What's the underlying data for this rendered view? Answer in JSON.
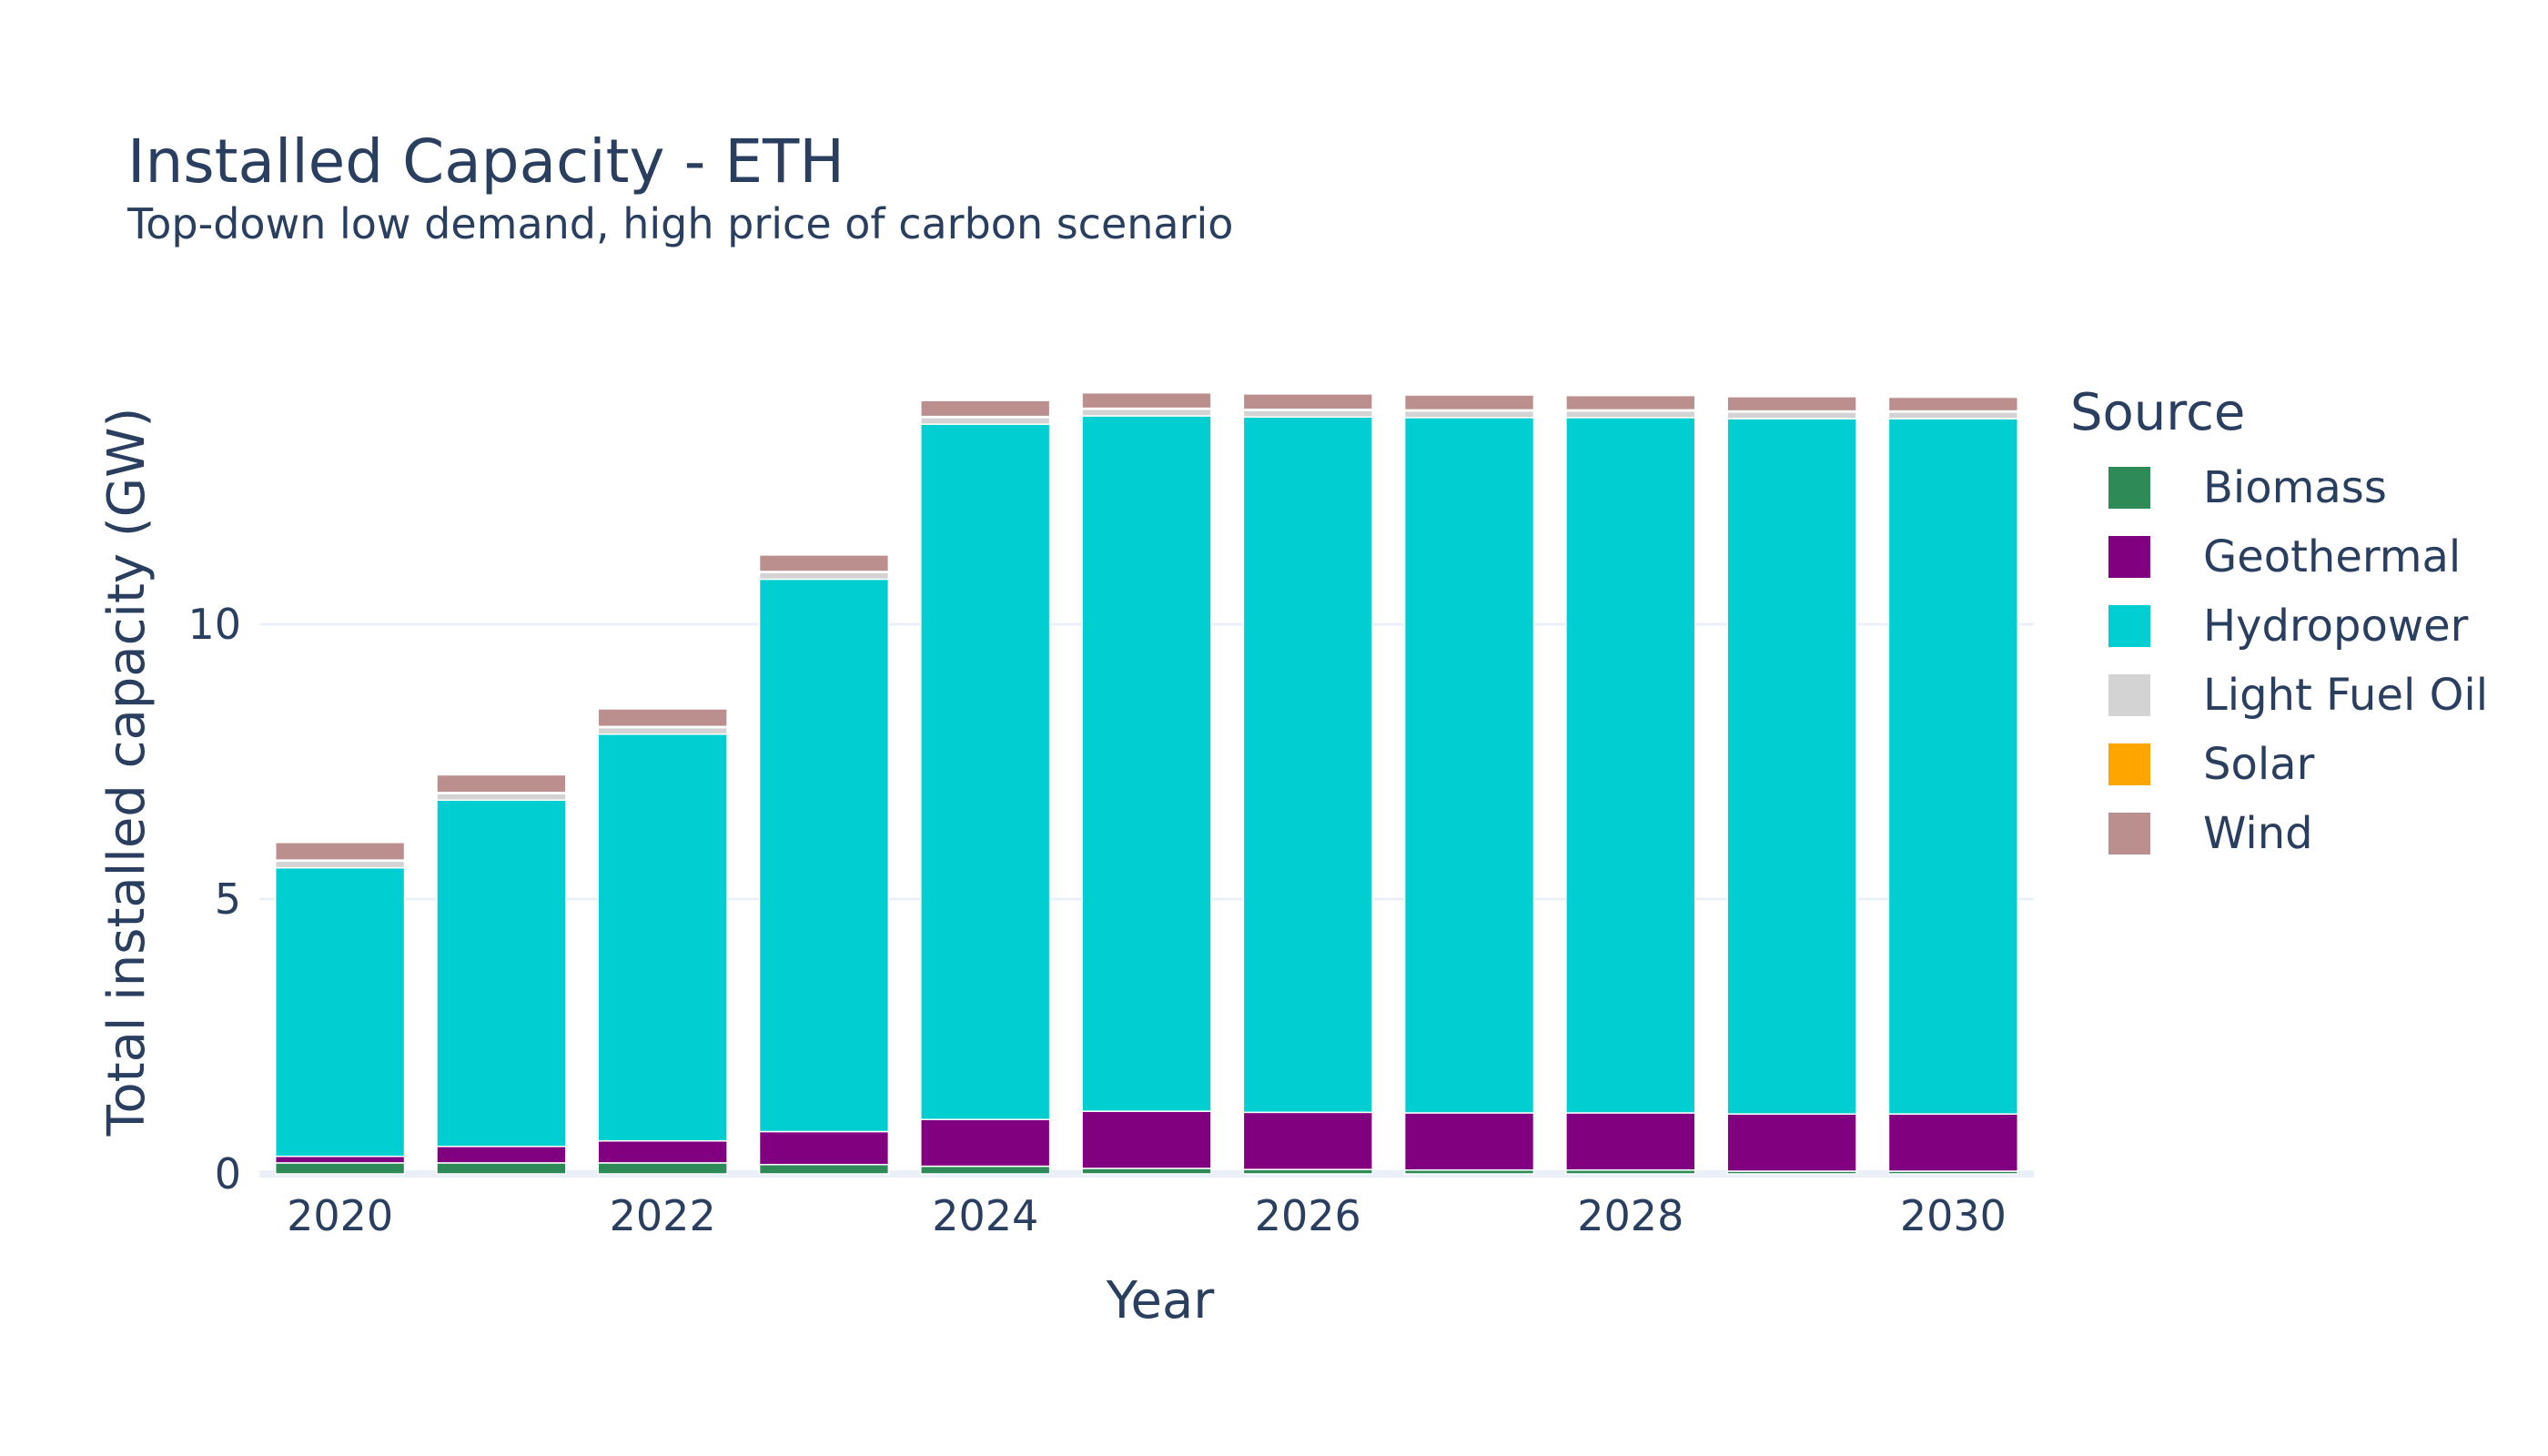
{
  "chart_data": {
    "type": "bar",
    "barmode": "stack",
    "title": "Installed Capacity - ETH",
    "subtitle": "Top-down low demand, high price of carbon scenario",
    "xlabel": "Year",
    "ylabel": "Total installed capacity (GW)",
    "legend_title": "Source",
    "legend_position": "right",
    "grid": true,
    "categories": [
      2020,
      2021,
      2022,
      2023,
      2024,
      2025,
      2026,
      2027,
      2028,
      2029,
      2030
    ],
    "x_ticks": [
      "2020",
      "2022",
      "2024",
      "2026",
      "2028",
      "2030"
    ],
    "y_ticks": [
      0,
      5,
      10
    ],
    "y_tick_labels": [
      "0",
      "5",
      "10"
    ],
    "ylim": [
      0,
      14.9
    ],
    "series": [
      {
        "name": "Biomass",
        "color": "#2e8b57",
        "values": [
          0.2,
          0.2,
          0.2,
          0.17,
          0.14,
          0.1,
          0.08,
          0.07,
          0.07,
          0.05,
          0.05
        ]
      },
      {
        "name": "Geothermal",
        "color": "#800080",
        "values": [
          0.12,
          0.3,
          0.4,
          0.6,
          0.85,
          1.04,
          1.04,
          1.04,
          1.04,
          1.04,
          1.04
        ]
      },
      {
        "name": "Hydropower",
        "color": "#00ced1",
        "values": [
          5.25,
          6.3,
          7.4,
          10.05,
          12.65,
          12.65,
          12.65,
          12.65,
          12.65,
          12.65,
          12.65
        ]
      },
      {
        "name": "Light Fuel Oil",
        "color": "#d3d3d3",
        "values": [
          0.12,
          0.12,
          0.12,
          0.12,
          0.12,
          0.12,
          0.12,
          0.12,
          0.12,
          0.12,
          0.12
        ]
      },
      {
        "name": "Solar",
        "color": "#ffa500",
        "values": [
          0.02,
          0.02,
          0.02,
          0.02,
          0.02,
          0.02,
          0.02,
          0.02,
          0.02,
          0.02,
          0.02
        ]
      },
      {
        "name": "Wind",
        "color": "#bc8f8f",
        "values": [
          0.32,
          0.32,
          0.32,
          0.3,
          0.29,
          0.28,
          0.28,
          0.27,
          0.26,
          0.26,
          0.25
        ]
      }
    ]
  }
}
